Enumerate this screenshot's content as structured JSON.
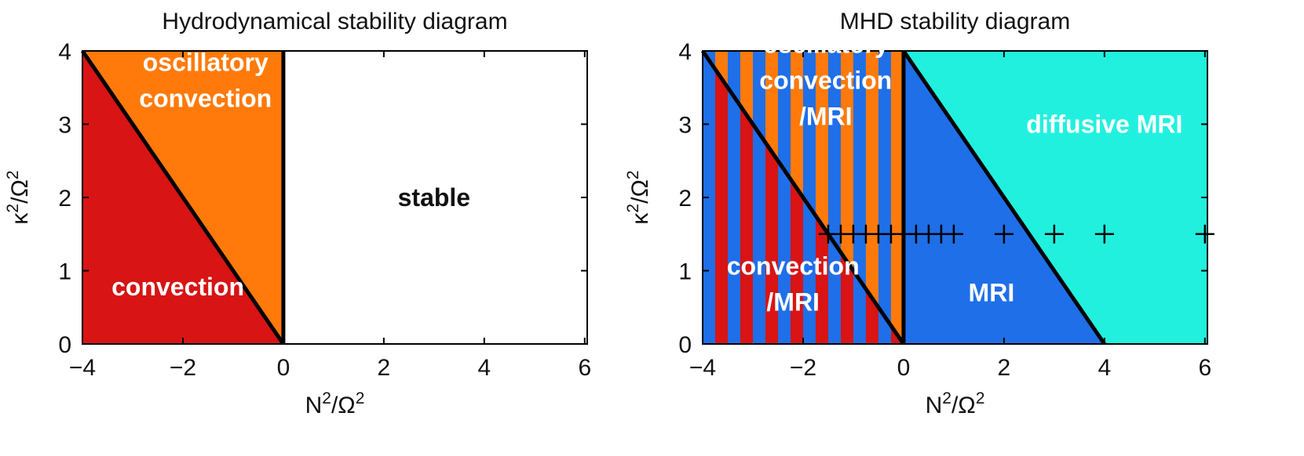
{
  "colors": {
    "convection": "#d81414",
    "oscillatory": "#ff7a0a",
    "stable": "#ffffff",
    "mri": "#1f6fe8",
    "diffusive_mri": "#22f0df",
    "boundary": "#000000"
  },
  "chart_data": [
    {
      "type": "area",
      "title": "Hydrodynamical stability diagram",
      "xlabel": {
        "base": "N",
        "sup1": "2",
        "mid": "/Ω",
        "sup2": "2"
      },
      "ylabel": {
        "base": "κ",
        "sup1": "2",
        "mid": "/Ω",
        "sup2": "2"
      },
      "xlim": [
        -4,
        6.05
      ],
      "ylim": [
        0,
        4
      ],
      "xticks": [
        "−4",
        "−2",
        "0",
        "2",
        "4",
        "6"
      ],
      "xtick_values": [
        -4,
        -2,
        0,
        2,
        4,
        6
      ],
      "yticks": [
        "0",
        "1",
        "2",
        "3",
        "4"
      ],
      "ytick_values": [
        0,
        1,
        2,
        3,
        4
      ],
      "boundary_lines": [
        {
          "x": [
            -4,
            0
          ],
          "y": [
            4,
            0
          ]
        },
        {
          "x": [
            0,
            0
          ],
          "y": [
            0,
            4
          ]
        }
      ],
      "regions": [
        {
          "label": [
            "convection"
          ],
          "fill": "convection",
          "polygon": [
            [
              -4,
              0
            ],
            [
              -4,
              4
            ],
            [
              0,
              0
            ]
          ],
          "label_at": [
            -2.1,
            0.78
          ],
          "text_color": "#ffffff"
        },
        {
          "label": [
            "oscillatory",
            "convection"
          ],
          "fill": "oscillatory",
          "polygon": [
            [
              -4,
              4
            ],
            [
              0,
              4
            ],
            [
              0,
              0
            ]
          ],
          "label_at": [
            -1.55,
            3.6
          ],
          "text_color": "#ffffff"
        },
        {
          "label": [
            "stable"
          ],
          "fill": "stable",
          "polygon": [
            [
              0,
              0
            ],
            [
              0,
              4
            ],
            [
              6.05,
              4
            ],
            [
              6.05,
              0
            ]
          ],
          "label_at": [
            3.0,
            2.0
          ],
          "text_color": "#111111"
        }
      ],
      "markers": []
    },
    {
      "type": "area",
      "title": "MHD stability diagram",
      "xlabel": {
        "base": "N",
        "sup1": "2",
        "mid": "/Ω",
        "sup2": "2"
      },
      "ylabel": {
        "base": "κ",
        "sup1": "2",
        "mid": "/Ω",
        "sup2": "2"
      },
      "xlim": [
        -4,
        6.05
      ],
      "ylim": [
        0,
        4
      ],
      "xticks": [
        "−4",
        "−2",
        "0",
        "2",
        "4",
        "6"
      ],
      "xtick_values": [
        -4,
        -2,
        0,
        2,
        4,
        6
      ],
      "yticks": [
        "0",
        "1",
        "2",
        "3",
        "4"
      ],
      "ytick_values": [
        0,
        1,
        2,
        3,
        4
      ],
      "boundary_lines": [
        {
          "x": [
            -4,
            0
          ],
          "y": [
            4,
            0
          ]
        },
        {
          "x": [
            0,
            0
          ],
          "y": [
            0,
            4
          ]
        },
        {
          "x": [
            0,
            4
          ],
          "y": [
            4,
            0
          ]
        }
      ],
      "stripes": {
        "x_range": [
          -4,
          0
        ],
        "stripe_width": 0.25,
        "lower_pair": [
          "mri",
          "convection"
        ],
        "upper_pair": [
          "mri",
          "oscillatory"
        ]
      },
      "regions": [
        {
          "label": [
            "convection",
            "/MRI"
          ],
          "fill": null,
          "polygon": [],
          "label_at": [
            -2.2,
            0.82
          ],
          "text_color": "#ffffff"
        },
        {
          "label": [
            "oscillatory",
            "convection",
            "/MRI"
          ],
          "fill": null,
          "polygon": [],
          "label_at": [
            -1.55,
            3.6
          ],
          "text_color": "#ffffff"
        },
        {
          "label": [
            "MRI"
          ],
          "fill": "mri",
          "polygon": [
            [
              0,
              0
            ],
            [
              0,
              4
            ],
            [
              4,
              0
            ]
          ],
          "label_at": [
            1.75,
            0.7
          ],
          "text_color": "#ffffff"
        },
        {
          "label": [
            "diffusive MRI"
          ],
          "fill": "diffusive_mri",
          "polygon": [
            [
              0,
              4
            ],
            [
              6.05,
              4
            ],
            [
              6.05,
              0
            ],
            [
              4,
              0
            ]
          ],
          "label_at": [
            4.0,
            3.0
          ],
          "text_color": "#ffffff"
        }
      ],
      "markers": {
        "symbol": "+",
        "x": [
          -1.5,
          -1.25,
          -1,
          -0.75,
          -0.5,
          -0.25,
          0,
          0.25,
          0.5,
          0.75,
          1,
          2,
          3,
          4,
          6
        ],
        "y": [
          1.5,
          1.5,
          1.5,
          1.5,
          1.5,
          1.5,
          1.5,
          1.5,
          1.5,
          1.5,
          1.5,
          1.5,
          1.5,
          1.5,
          1.5
        ]
      }
    }
  ]
}
